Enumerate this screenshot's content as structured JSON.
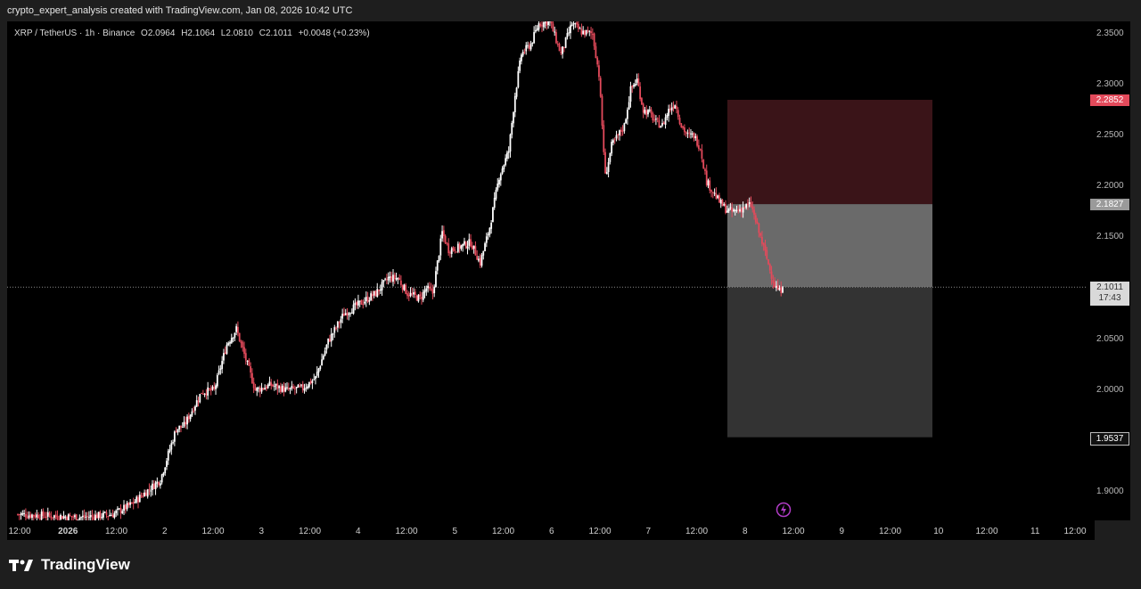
{
  "header": {
    "credit": "crypto_expert_analysis created with TradingView.com, Jan 08, 2026 10:42 UTC"
  },
  "symbol": {
    "name": "XRP / TetherUS · 1h · Binance",
    "open": "O2.0964",
    "high": "H2.1064",
    "low": "L2.0810",
    "close": "C2.1011",
    "change": "+0.0048 (+0.23%)"
  },
  "chart_data": {
    "type": "candlestick",
    "title": "XRP / TetherUS · 1h · Binance",
    "y_ticks": [
      1.9,
      2.0,
      2.05,
      2.1,
      2.15,
      2.2,
      2.25,
      2.3,
      2.35
    ],
    "y_tick_labels": [
      "1.9000",
      "2.0000",
      "2.0500",
      "2.1000",
      "2.1500",
      "2.2000",
      "2.2500",
      "2.3000",
      "2.3500"
    ],
    "x_tick_labels": [
      "12:00",
      "2026",
      "12:00",
      "2",
      "12:00",
      "3",
      "12:00",
      "4",
      "12:00",
      "5",
      "12:00",
      "6",
      "12:00",
      "7",
      "12:00",
      "8",
      "12:00",
      "9",
      "12:00",
      "10",
      "12:00",
      "11",
      "12:00"
    ],
    "ylim": [
      1.875,
      2.365
    ],
    "price_path": [
      [
        0,
        1.878
      ],
      [
        40,
        1.875
      ],
      [
        60,
        1.878
      ],
      [
        72,
        1.888
      ],
      [
        90,
        1.912
      ],
      [
        100,
        1.962
      ],
      [
        105,
        1.965
      ],
      [
        116,
        1.998
      ],
      [
        124,
        2.0
      ],
      [
        132,
        2.045
      ],
      [
        138,
        2.06
      ],
      [
        142,
        2.04
      ],
      [
        150,
        2.0
      ],
      [
        160,
        2.005
      ],
      [
        170,
        2.0
      ],
      [
        180,
        2.002
      ],
      [
        188,
        2.012
      ],
      [
        196,
        2.048
      ],
      [
        206,
        2.075
      ],
      [
        216,
        2.085
      ],
      [
        226,
        2.095
      ],
      [
        234,
        2.11
      ],
      [
        240,
        2.11
      ],
      [
        246,
        2.095
      ],
      [
        254,
        2.09
      ],
      [
        258,
        2.1
      ],
      [
        262,
        2.095
      ],
      [
        268,
        2.155
      ],
      [
        272,
        2.138
      ],
      [
        278,
        2.14
      ],
      [
        286,
        2.145
      ],
      [
        292,
        2.125
      ],
      [
        298,
        2.16
      ],
      [
        304,
        2.21
      ],
      [
        310,
        2.235
      ],
      [
        314,
        2.29
      ],
      [
        318,
        2.33
      ],
      [
        324,
        2.34
      ],
      [
        329,
        2.36
      ],
      [
        336,
        2.362
      ],
      [
        343,
        2.33
      ],
      [
        350,
        2.36
      ],
      [
        356,
        2.352
      ],
      [
        363,
        2.35
      ],
      [
        367,
        2.31
      ],
      [
        371,
        2.21
      ],
      [
        375,
        2.24
      ],
      [
        379,
        2.25
      ],
      [
        383,
        2.26
      ],
      [
        387,
        2.295
      ],
      [
        391,
        2.305
      ],
      [
        395,
        2.275
      ],
      [
        399,
        2.272
      ],
      [
        403,
        2.263
      ],
      [
        407,
        2.26
      ],
      [
        411,
        2.275
      ],
      [
        415,
        2.282
      ],
      [
        419,
        2.26
      ],
      [
        423,
        2.25
      ],
      [
        427,
        2.25
      ],
      [
        431,
        2.238
      ],
      [
        435,
        2.205
      ],
      [
        439,
        2.195
      ],
      [
        443,
        2.185
      ],
      [
        447,
        2.178
      ],
      [
        451,
        2.175
      ],
      [
        455,
        2.177
      ],
      [
        459,
        2.18
      ],
      [
        463,
        2.182
      ],
      [
        467,
        2.16
      ],
      [
        471,
        2.14
      ],
      [
        475,
        2.118
      ],
      [
        478,
        2.103
      ],
      [
        481,
        2.097
      ],
      [
        483,
        2.101
      ]
    ],
    "position": {
      "target": 2.2852,
      "entry": 2.1827,
      "last": 2.1011,
      "stop": 1.9537
    },
    "price_tags": {
      "target": "2.2852",
      "entry": "2.1827",
      "last": "2.1011",
      "countdown": "17:43",
      "stop": "1.9537"
    }
  },
  "footer": {
    "brand": "TradingView"
  },
  "colors": {
    "up": "#ffffff",
    "down": "#e34a5b",
    "target_zone": "#f23645",
    "stop_zone": "#a8a8a8"
  }
}
